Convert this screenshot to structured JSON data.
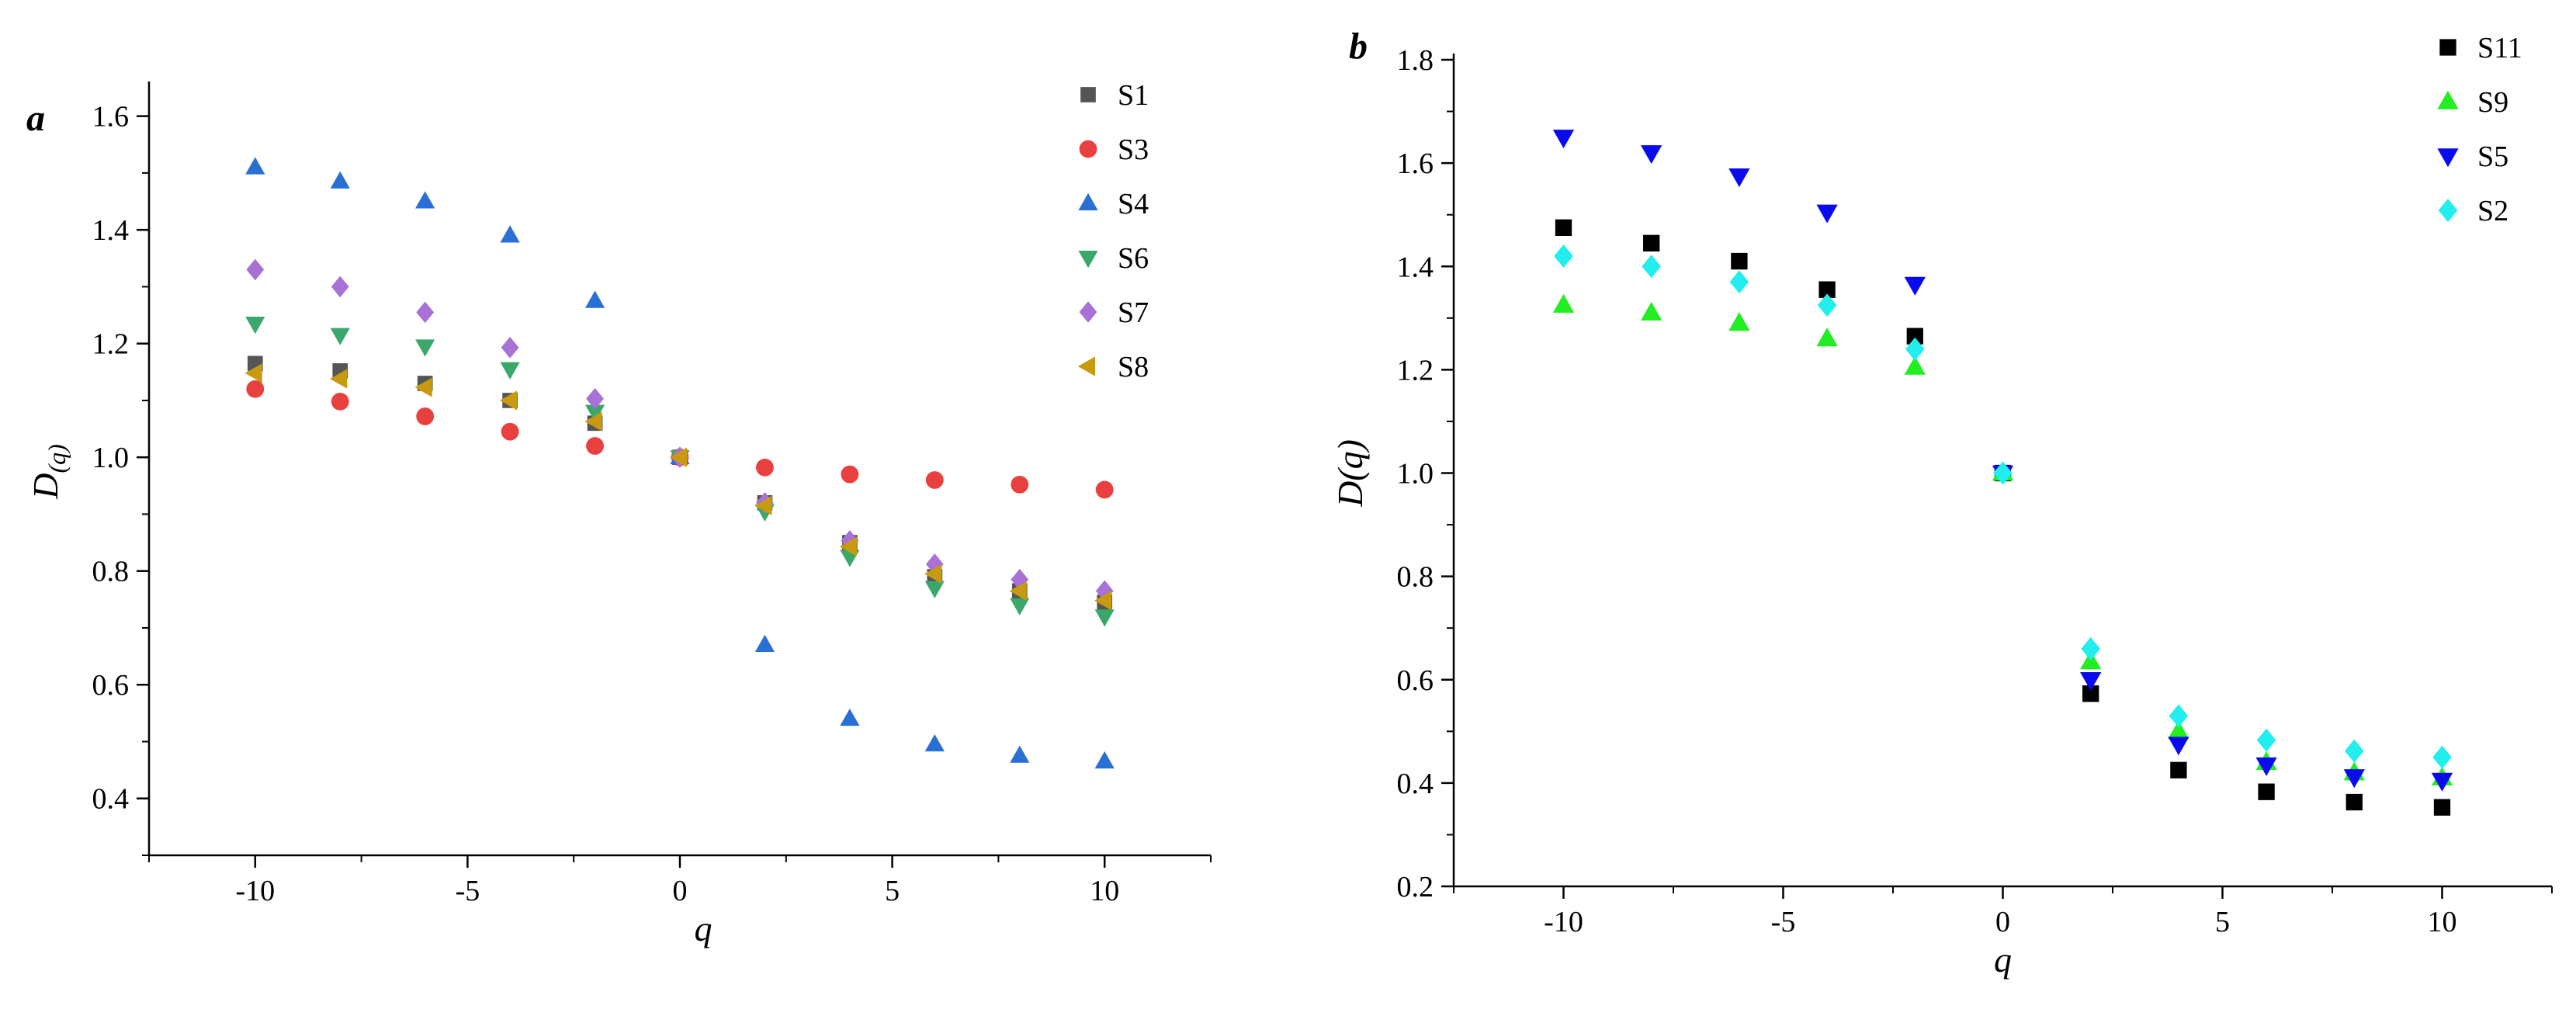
{
  "chart_data": [
    {
      "type": "scatter",
      "panel_label": "a",
      "title": "",
      "xlabel": "q",
      "ylabel_main": "D",
      "ylabel_sub": "(q)",
      "xlim": [
        -12.5,
        12.5
      ],
      "ylim": [
        0.3,
        1.65
      ],
      "xticks": [
        -10,
        -5,
        0,
        5,
        10
      ],
      "xtick_labels": [
        "-10",
        "-5",
        "0",
        "5",
        "10"
      ],
      "yticks": [
        0.4,
        0.6,
        0.8,
        1.0,
        1.2,
        1.4,
        1.6
      ],
      "ytick_labels": [
        "0.4",
        "0.6",
        "0.8",
        "1.0",
        "1.2",
        "1.4",
        "1.6"
      ],
      "legend_position": "top-right",
      "x": [
        -10,
        -8,
        -6,
        -4,
        -2,
        0,
        2,
        4,
        6,
        8,
        10
      ],
      "series": [
        {
          "name": "S1",
          "marker": "square",
          "color": "#555555",
          "values": [
            1.165,
            1.152,
            1.13,
            1.1,
            1.06,
            1.0,
            0.92,
            0.85,
            0.79,
            0.765,
            0.745
          ]
        },
        {
          "name": "S3",
          "marker": "circle",
          "color": "#e8403f",
          "values": [
            1.12,
            1.098,
            1.072,
            1.045,
            1.02,
            1.0,
            0.982,
            0.97,
            0.96,
            0.952,
            0.943
          ]
        },
        {
          "name": "S4",
          "marker": "triangle-up",
          "color": "#2a6fd6",
          "values": [
            1.51,
            1.485,
            1.45,
            1.39,
            1.275,
            1.0,
            0.67,
            0.54,
            0.495,
            0.475,
            0.465
          ]
        },
        {
          "name": "S6",
          "marker": "triangle-down",
          "color": "#3aa86a",
          "values": [
            1.235,
            1.215,
            1.195,
            1.155,
            1.08,
            1.0,
            0.905,
            0.825,
            0.77,
            0.74,
            0.72
          ]
        },
        {
          "name": "S7",
          "marker": "diamond",
          "color": "#a970d6",
          "values": [
            1.33,
            1.3,
            1.255,
            1.193,
            1.103,
            1.0,
            0.92,
            0.853,
            0.812,
            0.785,
            0.765
          ]
        },
        {
          "name": "S8",
          "marker": "triangle-left",
          "color": "#c89a10",
          "values": [
            1.148,
            1.138,
            1.123,
            1.1,
            1.063,
            1.0,
            0.915,
            0.843,
            0.795,
            0.765,
            0.748
          ]
        }
      ]
    },
    {
      "type": "scatter",
      "panel_label": "b",
      "title": "",
      "xlabel": "q",
      "ylabel_main": "D(q)",
      "xlim": [
        -12.5,
        12.5
      ],
      "ylim": [
        0.2,
        1.8
      ],
      "xticks": [
        -10,
        -5,
        0,
        5,
        10
      ],
      "xtick_labels": [
        "-10",
        "-5",
        "0",
        "5",
        "10"
      ],
      "yticks": [
        0.2,
        0.4,
        0.6,
        0.8,
        1.0,
        1.2,
        1.4,
        1.6,
        1.8
      ],
      "ytick_labels": [
        "0.2",
        "0.4",
        "0.6",
        "0.8",
        "1.0",
        "1.2",
        "1.4",
        "1.6",
        "1.8"
      ],
      "legend_position": "top-right",
      "x": [
        -10,
        -8,
        -6,
        -4,
        -2,
        0,
        2,
        4,
        6,
        8,
        10
      ],
      "series": [
        {
          "name": "S11",
          "marker": "square",
          "color": "#000000",
          "values": [
            1.475,
            1.445,
            1.41,
            1.355,
            1.265,
            1.0,
            0.573,
            0.425,
            0.383,
            0.363,
            0.353
          ]
        },
        {
          "name": "S9",
          "marker": "triangle-up",
          "color": "#22ee22",
          "values": [
            1.325,
            1.31,
            1.29,
            1.26,
            1.205,
            1.0,
            0.635,
            0.5,
            0.44,
            0.42,
            0.41
          ]
        },
        {
          "name": "S5",
          "marker": "triangle-down",
          "color": "#0a0aee",
          "values": [
            1.65,
            1.62,
            1.575,
            1.505,
            1.365,
            1.0,
            0.6,
            0.475,
            0.435,
            0.412,
            0.405
          ]
        },
        {
          "name": "S2",
          "marker": "diamond",
          "color": "#22eeee",
          "values": [
            1.42,
            1.4,
            1.37,
            1.325,
            1.24,
            1.0,
            0.66,
            0.53,
            0.483,
            0.462,
            0.45
          ]
        }
      ]
    }
  ]
}
